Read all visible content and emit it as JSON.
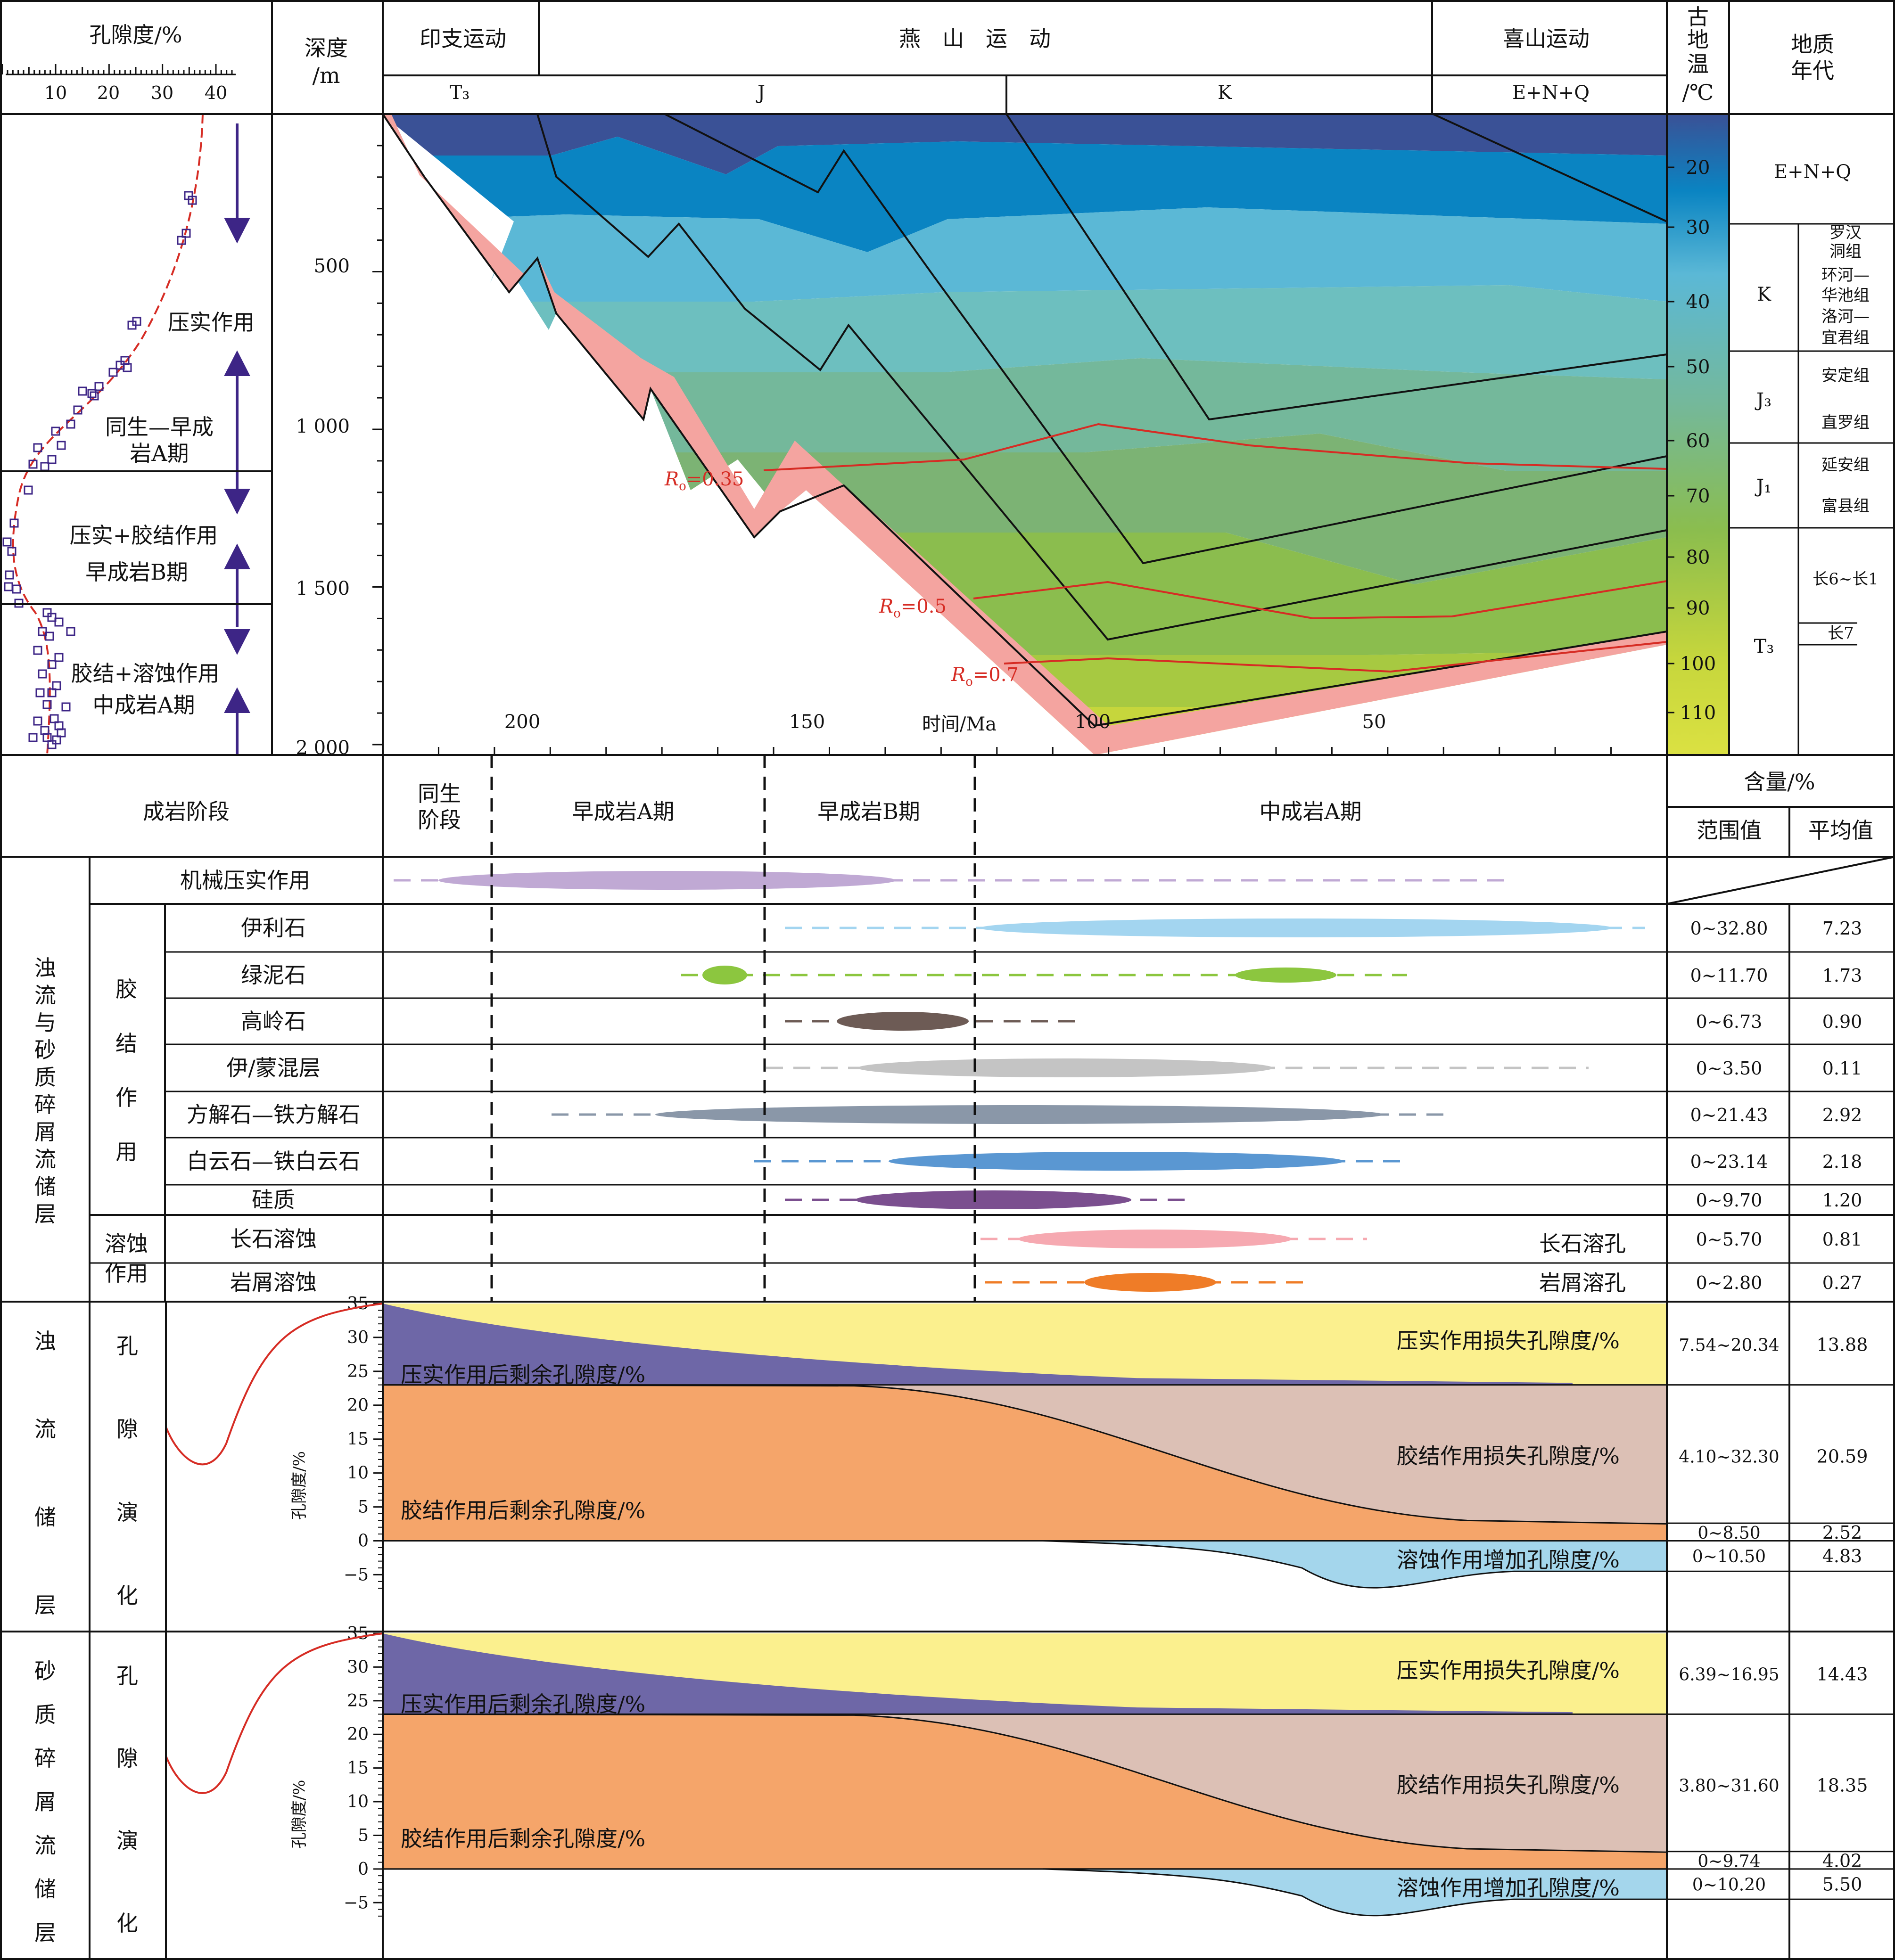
{
  "porosity_header": {
    "title": "孔隙度/%",
    "ticks": [
      "10",
      "20",
      "30",
      "40"
    ]
  },
  "depth_header": {
    "label1": "深度",
    "label2": "/m"
  },
  "depth_ticks": [
    "500",
    "1 000",
    "1 500",
    "2 000"
  ],
  "orogeny": {
    "indosinian": "印支运动",
    "yanshan": "燕　山　运　动",
    "himalayan": "喜山运动"
  },
  "strata": {
    "t3": "T₃",
    "j": "J",
    "k": "K",
    "enq": "E+N+Q"
  },
  "paleotemp_header": {
    "l1": "古",
    "l2": "地",
    "l3": "温",
    "l4": "/℃"
  },
  "geo_age_header": {
    "l1": "地质",
    "l2": "年代"
  },
  "temp_ticks": [
    "20",
    "30",
    "40",
    "50",
    "60",
    "70",
    "80",
    "90",
    "100",
    "110"
  ],
  "geo_age": {
    "enq": "E+N+Q",
    "k": "K",
    "k_forms": [
      "罗汉",
      "洞组",
      "环河—",
      "华池组",
      "洛河—",
      "宜君组"
    ],
    "j3": "J₃",
    "j3_forms": [
      "安定组",
      "直罗组"
    ],
    "j1": "J₁",
    "j1_forms": [
      "延安组",
      "富县组"
    ],
    "t3": "T₃",
    "t3_forms": [
      "长6~长1",
      "长7"
    ]
  },
  "time_axis": {
    "label": "时间/Ma",
    "ticks": [
      "200",
      "150",
      "100",
      "50"
    ]
  },
  "ro_labels": {
    "r035": "=0.35",
    "r05": "=0.5",
    "r07": "=0.7",
    "symbol": "R",
    "sub": "o"
  },
  "stage_text": {
    "compaction": "压实作用",
    "syn_l1": "同生—早成",
    "syn_l2": "岩A期",
    "b_l1": "压实+胶结作用",
    "b_l2": "早成岩B期",
    "ma_l1": "胶结+溶蚀作用",
    "ma_l2": "中成岩A期"
  },
  "diagenesis_header": {
    "stage": "成岩阶段",
    "syn1": "同生",
    "syn2": "阶段",
    "ea": "早成岩A期",
    "eb": "早成岩B期",
    "ma": "中成岩A期",
    "content": "含量/%",
    "range": "范围值",
    "avg": "平均值"
  },
  "category_labels": {
    "reservoir": [
      "浊",
      "流",
      "与",
      "砂",
      "质",
      "碎",
      "屑",
      "流",
      "储",
      "层"
    ],
    "cementation": [
      "胶",
      "结",
      "作",
      "用"
    ],
    "dissolution1": "溶蚀",
    "dissolution2": "作用"
  },
  "processes": [
    {
      "name": "机械压实作用",
      "range": "",
      "avg": ""
    },
    {
      "name": "伊利石",
      "range": "0~32.80",
      "avg": "7.23"
    },
    {
      "name": "绿泥石",
      "range": "0~11.70",
      "avg": "1.73"
    },
    {
      "name": "高岭石",
      "range": "0~6.73",
      "avg": "0.90"
    },
    {
      "name": "伊/蒙混层",
      "range": "0~3.50",
      "avg": "0.11"
    },
    {
      "name": "方解石—铁方解石",
      "range": "0~21.43",
      "avg": "2.92"
    },
    {
      "name": "白云石—铁白云石",
      "range": "0~23.14",
      "avg": "2.18"
    },
    {
      "name": "硅质",
      "range": "0~9.70",
      "avg": "1.20"
    },
    {
      "name": "长石溶蚀",
      "range": "0~5.70",
      "avg": "0.81"
    },
    {
      "name": "岩屑溶蚀",
      "range": "0~2.80",
      "avg": "0.27"
    }
  ],
  "pore_labels": {
    "feldspar": "长石溶孔",
    "debris": "岩屑溶孔"
  },
  "evolution_ticks": [
    "35",
    "30",
    "25",
    "20",
    "15",
    "10",
    "5",
    "0",
    "−5"
  ],
  "evolution_ylabel": "孔隙度/%",
  "evolution_labels": {
    "comp_loss": "压实作用损失孔隙度/%",
    "comp_rem": "压实作用后剩余孔隙度/%",
    "cem_loss": "胶结作用损失孔隙度/%",
    "cem_rem": "胶结作用后剩余孔隙度/%",
    "diss_add": "溶蚀作用增加孔隙度/%"
  },
  "turbidite": {
    "name": [
      "浊",
      "流",
      "储",
      "层"
    ],
    "evo": [
      "孔",
      "隙",
      "演",
      "化"
    ],
    "stats": [
      {
        "range": "7.54~20.34",
        "avg": "13.88"
      },
      {
        "range": "4.10~32.30",
        "avg": "20.59"
      },
      {
        "range": "0~8.50",
        "avg": "2.52"
      },
      {
        "range": "0~10.50",
        "avg": "4.83"
      }
    ]
  },
  "sandy": {
    "name": [
      "砂",
      "质",
      "碎",
      "屑",
      "流",
      "储",
      "层"
    ],
    "evo": [
      "孔",
      "隙",
      "演",
      "化"
    ],
    "stats": [
      {
        "range": "6.39~16.95",
        "avg": "14.43"
      },
      {
        "range": "3.80~31.60",
        "avg": "18.35"
      },
      {
        "range": "0~9.74",
        "avg": "4.02"
      },
      {
        "range": "0~10.20",
        "avg": "5.50"
      }
    ]
  },
  "colors": {
    "burial_bands": [
      "#3a5196",
      "#0a84c2",
      "#5bb8d6",
      "#6dbfbf",
      "#74b89b",
      "#7cb374",
      "#8bbd4e",
      "#a7c941",
      "#c6d63c",
      "#dbe142"
    ],
    "red": "#d62c24",
    "purple_arrow": "#3d2586",
    "pink_base": "#f4a4a0",
    "compaction": "#c0a9d4",
    "illite": "#a3d5f0",
    "chlorite": "#8cc63f",
    "kaolinite": "#6d5b55",
    "im": "#c4c4c4",
    "calcite": "#8a97a8",
    "dolomite": "#5a97d2",
    "silica": "#7b4f8f",
    "feldspar": "#f6a9b1",
    "debris": "#ef7c27",
    "yellow": "#fbf08e",
    "violet": "#6e67a7",
    "orange": "#f5a56a",
    "rose": "#dcc0b5",
    "blue": "#a4d6ec"
  }
}
